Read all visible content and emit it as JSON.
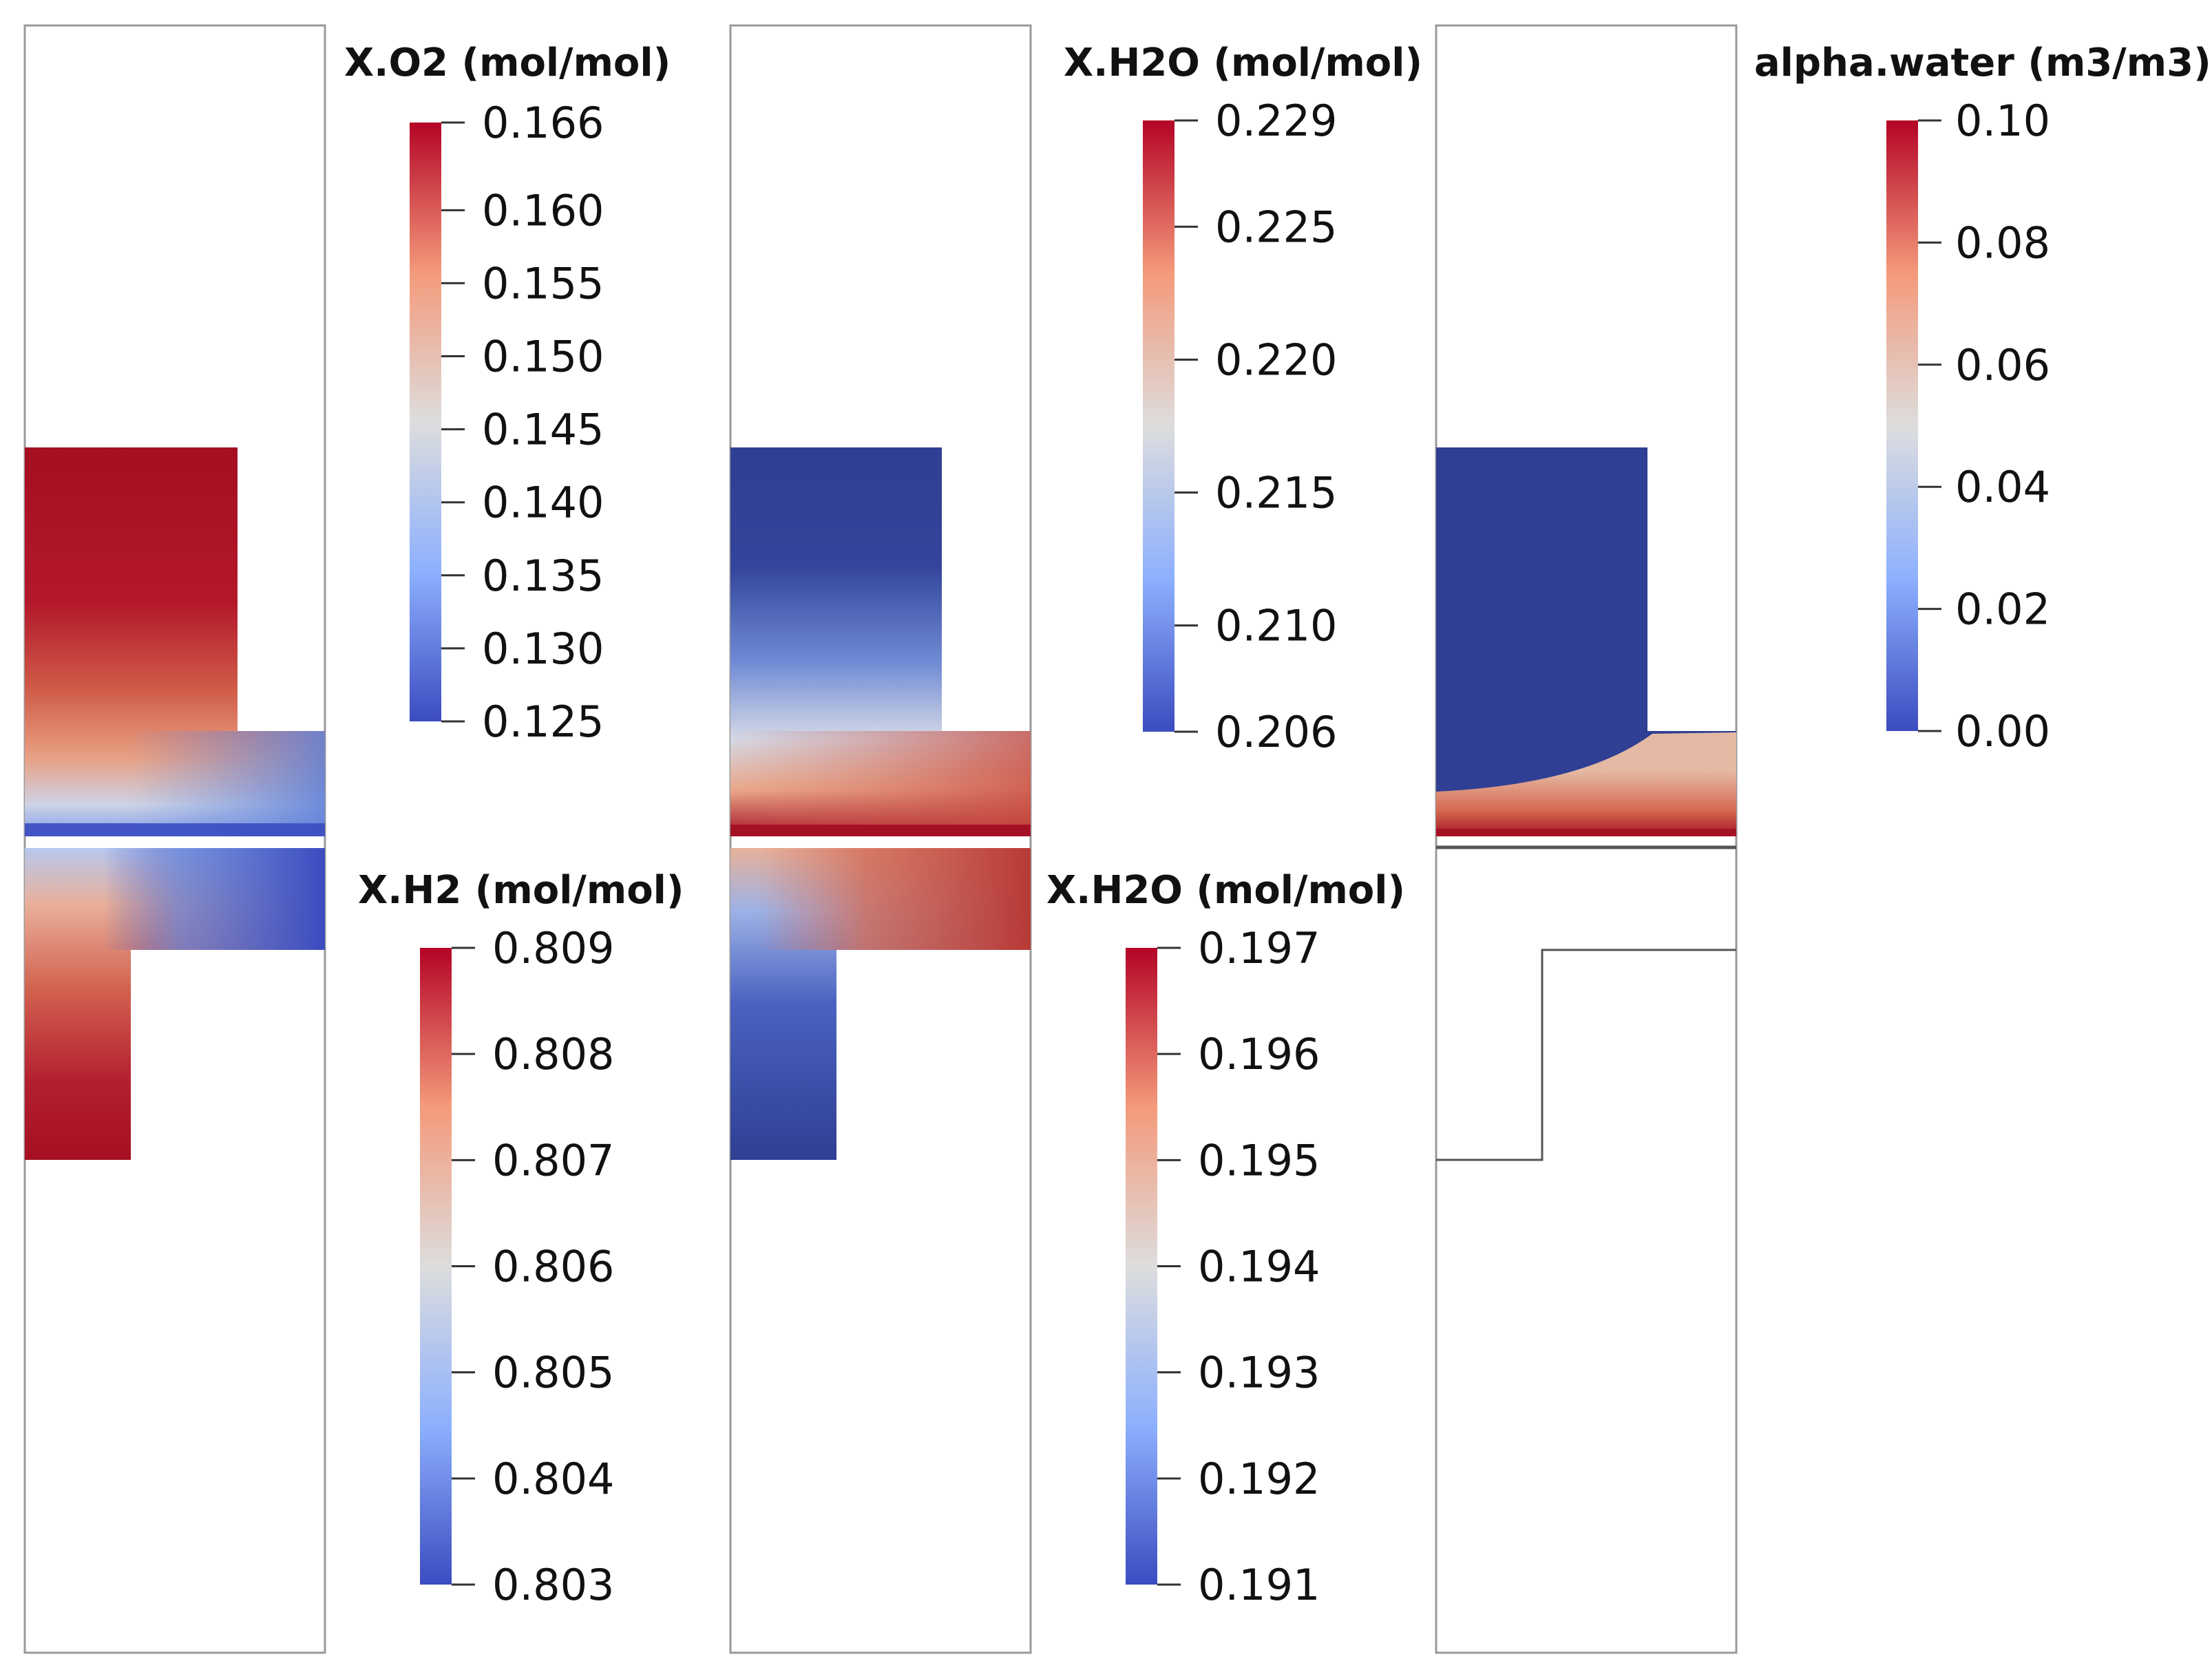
{
  "colormap": {
    "name": "Cool to Warm",
    "stops": [
      "#3b4cc0",
      "#8db0fe",
      "#dddddd",
      "#f49a7b",
      "#b40426"
    ],
    "field_blue": "#2f3f93",
    "field_red": "#a51124",
    "frame_color": "#9a9a9a"
  },
  "panels": [
    {
      "id": "cathode-o2",
      "column": "left",
      "row": "top",
      "field": "X.O2",
      "value_range": [
        0.125,
        0.166
      ]
    },
    {
      "id": "anode-h2",
      "column": "left",
      "row": "bottom",
      "field": "X.H2",
      "value_range": [
        0.803,
        0.809
      ]
    },
    {
      "id": "cathode-h2o",
      "column": "middle",
      "row": "top",
      "field": "X.H2O",
      "value_range": [
        0.206,
        0.229
      ]
    },
    {
      "id": "anode-h2o",
      "column": "middle",
      "row": "bottom",
      "field": "X.H2O",
      "value_range": [
        0.191,
        0.197
      ]
    },
    {
      "id": "cathode-water",
      "column": "right",
      "row": "top",
      "field": "alpha.water",
      "value_range": [
        0.0,
        0.1
      ]
    },
    {
      "id": "anode-outline",
      "column": "right",
      "row": "bottom",
      "field": "none",
      "value_range": null
    }
  ],
  "colorbars": [
    {
      "id": "xo2",
      "title": "X.O2 (mol/mol)",
      "min": 0.125,
      "max": 0.166,
      "ticks": [
        {
          "value": 0.166,
          "label": "0.166"
        },
        {
          "value": 0.16,
          "label": "0.160"
        },
        {
          "value": 0.155,
          "label": "0.155"
        },
        {
          "value": 0.15,
          "label": "0.150"
        },
        {
          "value": 0.145,
          "label": "0.145"
        },
        {
          "value": 0.14,
          "label": "0.140"
        },
        {
          "value": 0.135,
          "label": "0.135"
        },
        {
          "value": 0.13,
          "label": "0.130"
        },
        {
          "value": 0.125,
          "label": "0.125"
        }
      ]
    },
    {
      "id": "xh2",
      "title": "X.H2 (mol/mol)",
      "min": 0.803,
      "max": 0.809,
      "ticks": [
        {
          "value": 0.809,
          "label": "0.809"
        },
        {
          "value": 0.808,
          "label": "0.808"
        },
        {
          "value": 0.807,
          "label": "0.807"
        },
        {
          "value": 0.806,
          "label": "0.806"
        },
        {
          "value": 0.805,
          "label": "0.805"
        },
        {
          "value": 0.804,
          "label": "0.804"
        },
        {
          "value": 0.803,
          "label": "0.803"
        }
      ]
    },
    {
      "id": "xh2o-top",
      "title": "X.H2O (mol/mol)",
      "min": 0.206,
      "max": 0.229,
      "ticks": [
        {
          "value": 0.229,
          "label": "0.229"
        },
        {
          "value": 0.225,
          "label": "0.225"
        },
        {
          "value": 0.22,
          "label": "0.220"
        },
        {
          "value": 0.215,
          "label": "0.215"
        },
        {
          "value": 0.21,
          "label": "0.210"
        },
        {
          "value": 0.206,
          "label": "0.206"
        }
      ]
    },
    {
      "id": "xh2o-bottom",
      "title": "X.H2O (mol/mol)",
      "min": 0.191,
      "max": 0.197,
      "ticks": [
        {
          "value": 0.197,
          "label": "0.197"
        },
        {
          "value": 0.196,
          "label": "0.196"
        },
        {
          "value": 0.195,
          "label": "0.195"
        },
        {
          "value": 0.194,
          "label": "0.194"
        },
        {
          "value": 0.193,
          "label": "0.193"
        },
        {
          "value": 0.192,
          "label": "0.192"
        },
        {
          "value": 0.191,
          "label": "0.191"
        }
      ]
    },
    {
      "id": "alpha-water",
      "title": "alpha.water (m3/m3)",
      "min": 0.0,
      "max": 0.1,
      "ticks": [
        {
          "value": 0.1,
          "label": "0.10"
        },
        {
          "value": 0.08,
          "label": "0.08"
        },
        {
          "value": 0.06,
          "label": "0.06"
        },
        {
          "value": 0.04,
          "label": "0.04"
        },
        {
          "value": 0.02,
          "label": "0.02"
        },
        {
          "value": 0.0,
          "label": "0.00"
        }
      ]
    }
  ]
}
